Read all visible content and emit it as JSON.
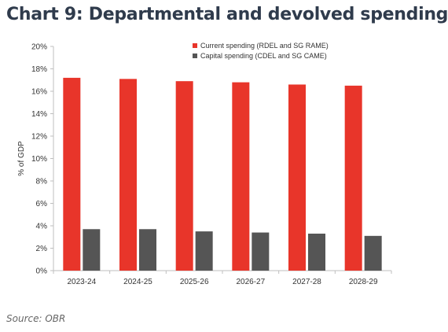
{
  "page": {
    "title": "Chart 9: Departmental and devolved spending",
    "source": "Source: OBR"
  },
  "chart_data": {
    "type": "bar",
    "title": "",
    "xlabel": "",
    "ylabel": "% of GDP",
    "categories": [
      "2023-24",
      "2024-25",
      "2025-26",
      "2026-27",
      "2027-28",
      "2028-29"
    ],
    "series": [
      {
        "name": "Current spending (RDEL and SG RAME)",
        "color": "#e8352a",
        "values": [
          17.2,
          17.1,
          16.9,
          16.8,
          16.6,
          16.5
        ]
      },
      {
        "name": "Capital spending (CDEL and SG CAME)",
        "color": "#555555",
        "values": [
          3.7,
          3.7,
          3.5,
          3.4,
          3.3,
          3.1
        ]
      }
    ],
    "ylim": [
      0,
      20
    ],
    "yticks": [
      "0%",
      "2%",
      "4%",
      "6%",
      "8%",
      "10%",
      "12%",
      "14%",
      "16%",
      "18%",
      "20%"
    ],
    "ytick_values": [
      0,
      2,
      4,
      6,
      8,
      10,
      12,
      14,
      16,
      18,
      20
    ],
    "grid": false,
    "legend_position": "top-right"
  }
}
